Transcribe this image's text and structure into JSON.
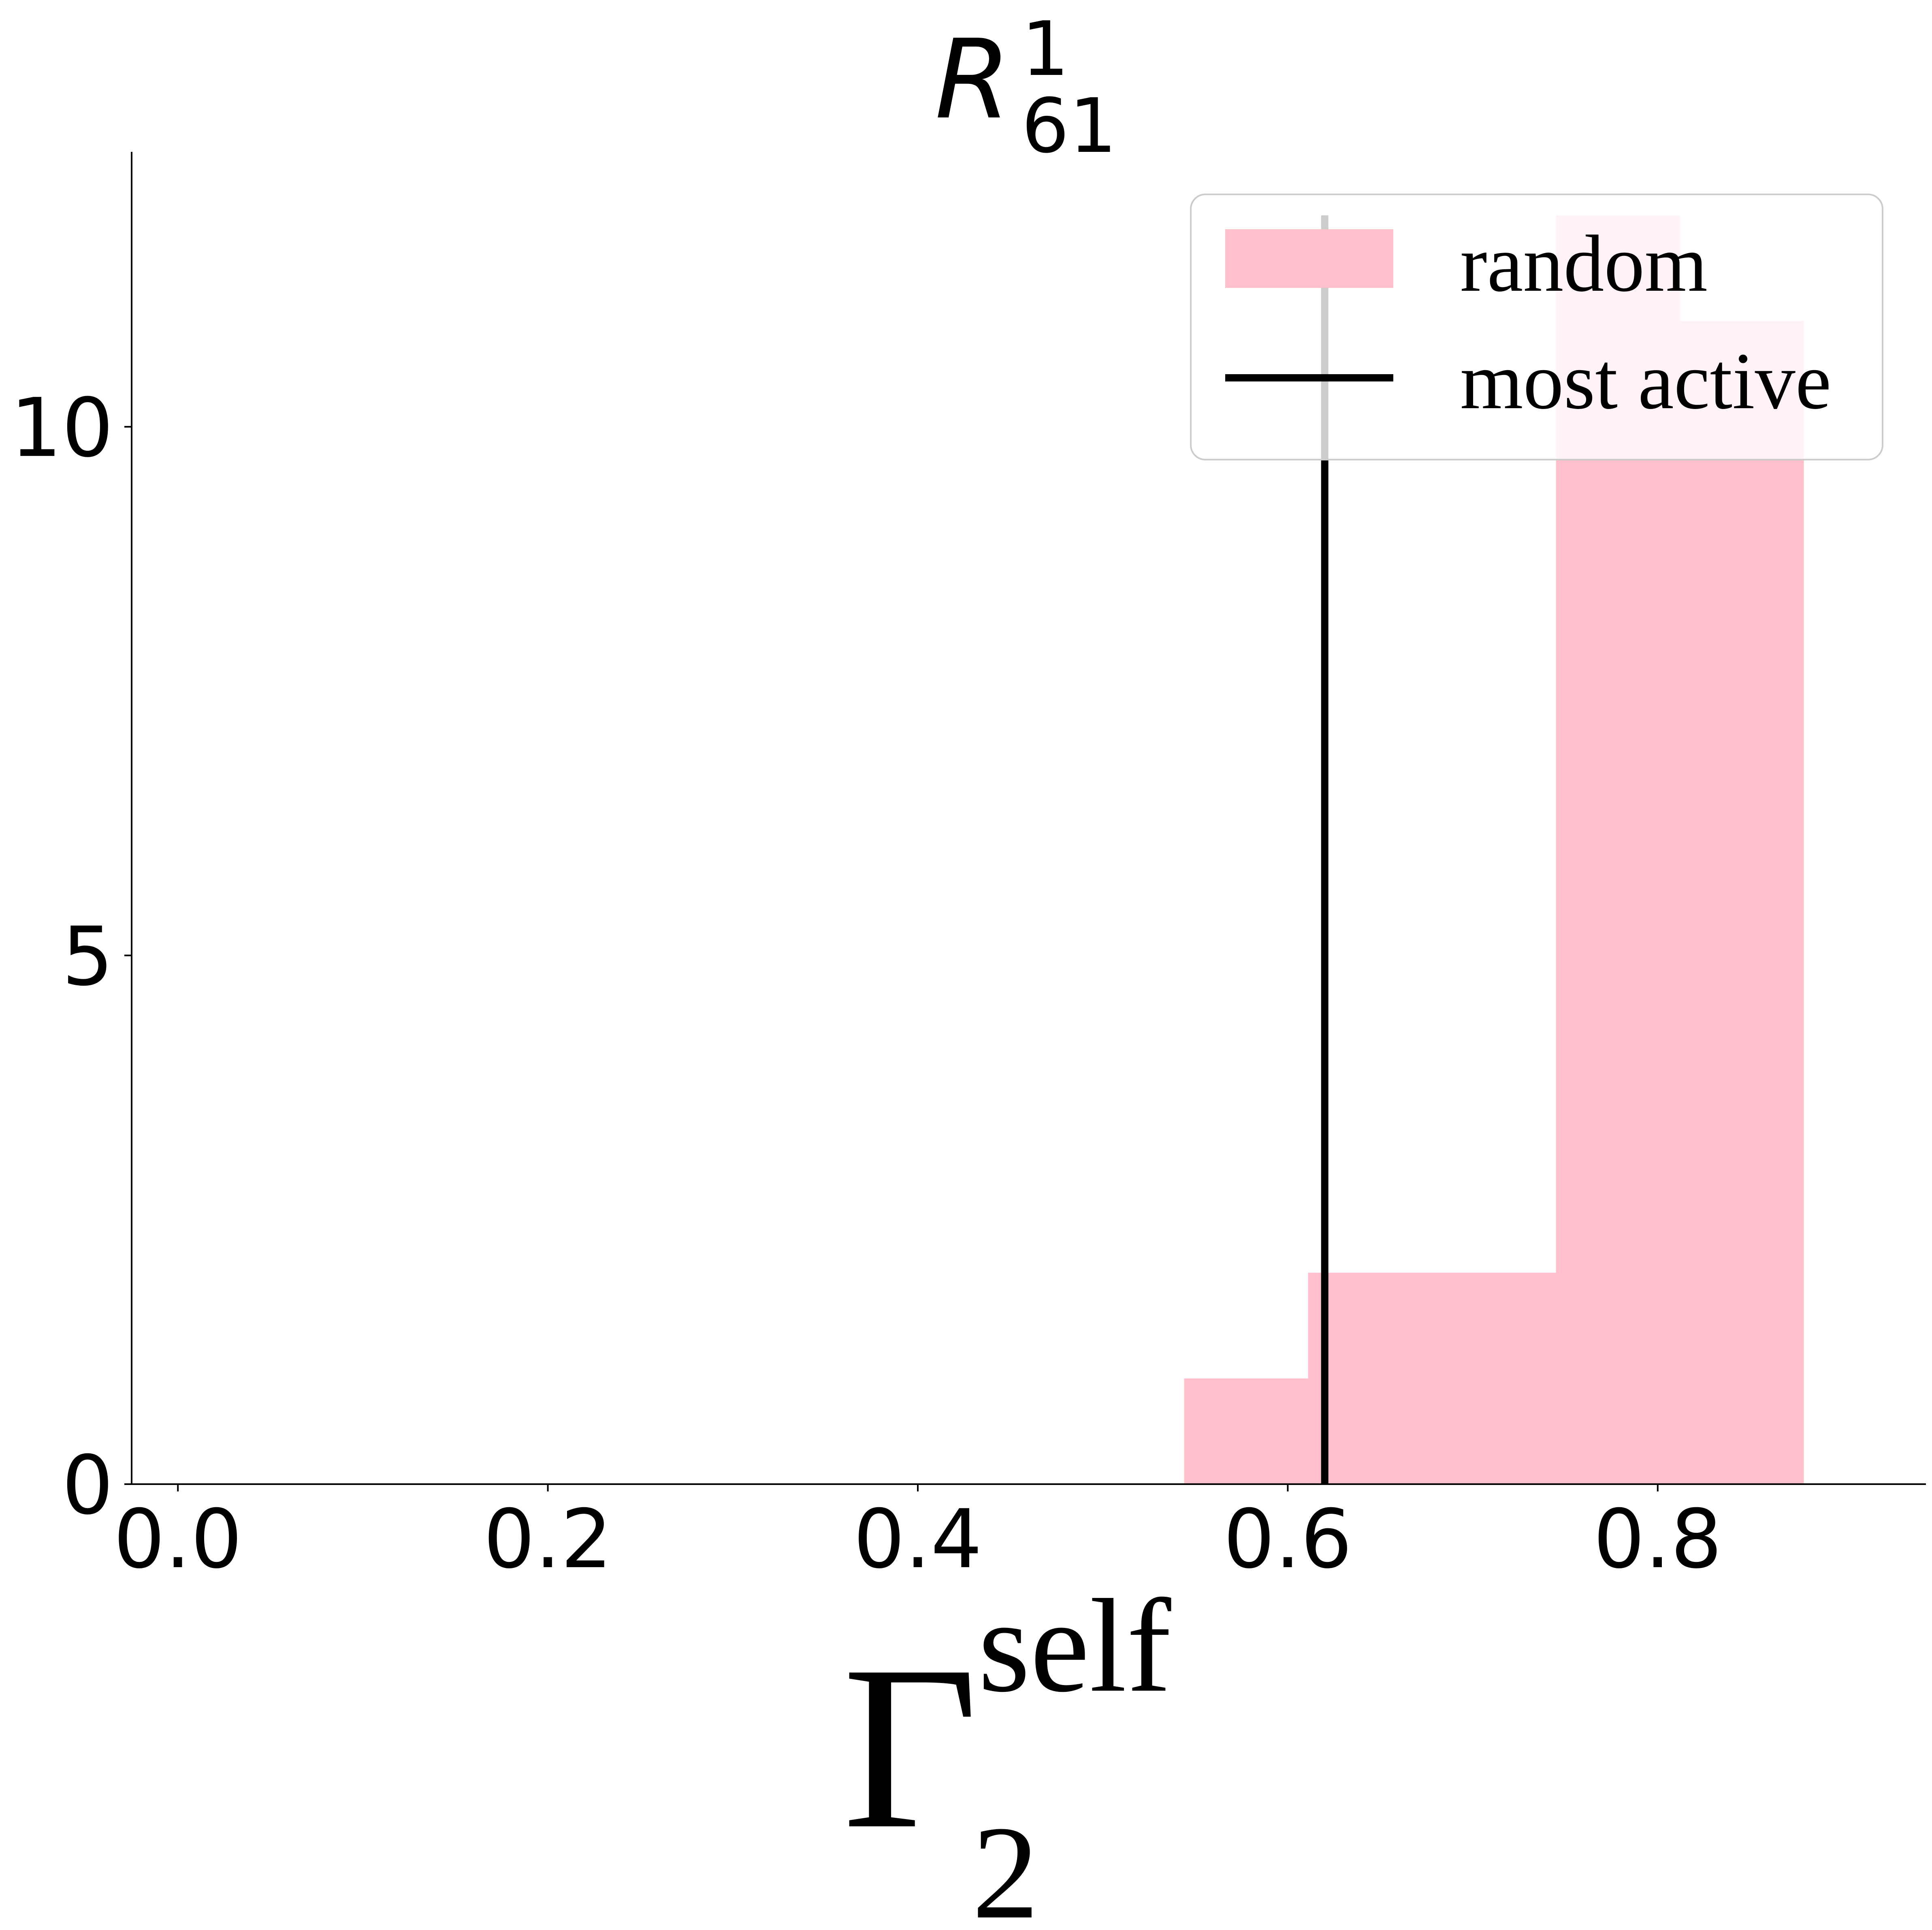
{
  "chart_data": {
    "type": "bar",
    "title": {
      "main": "R",
      "superscript": "1",
      "subscript": "61"
    },
    "xlabel": {
      "main": "Γ",
      "superscript": "self",
      "subscript": "2"
    },
    "ylabel": "",
    "xlim": [
      -0.025,
      0.945
    ],
    "ylim": [
      0,
      12.6
    ],
    "x_ticks": [
      0.0,
      0.2,
      0.4,
      0.6,
      0.8
    ],
    "x_tick_labels": [
      "0.0",
      "0.2",
      "0.4",
      "0.6",
      "0.8"
    ],
    "y_ticks": [
      0,
      5,
      10
    ],
    "y_tick_labels": [
      "0",
      "5",
      "10"
    ],
    "spines": {
      "top": false,
      "right": false
    },
    "grid": false,
    "legend_position": "top-right",
    "series": [
      {
        "name": "random",
        "type": "histogram",
        "color": "#ffc0cb",
        "bins": [
          {
            "x0": 0.544,
            "x1": 0.611,
            "count": 1
          },
          {
            "x0": 0.611,
            "x1": 0.678,
            "count": 2
          },
          {
            "x0": 0.678,
            "x1": 0.745,
            "count": 2
          },
          {
            "x0": 0.745,
            "x1": 0.812,
            "count": 12
          },
          {
            "x0": 0.812,
            "x1": 0.879,
            "count": 11
          }
        ]
      },
      {
        "name": "most active",
        "type": "vline",
        "color": "#000000",
        "x": 0.62,
        "y_range": [
          0,
          12
        ]
      }
    ]
  }
}
